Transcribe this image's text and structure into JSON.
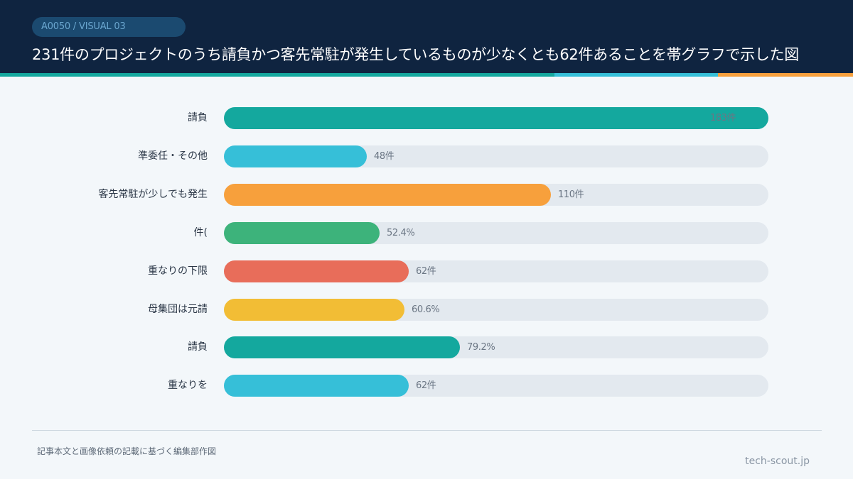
{
  "header": {
    "badge": "A0050 / VISUAL 03",
    "title": "231件のプロジェクトのうち請負かつ客先常駐が発生しているものが少なくとも62件あることを帯グラフで示した図"
  },
  "chart_data": {
    "type": "bar",
    "orientation": "horizontal",
    "xlim": [
      0,
      183
    ],
    "categories": [
      "請負",
      "準委任・その他",
      "客先常駐が少しでも発生",
      "件(",
      "重なりの下限",
      "母集団は元請",
      "請負",
      "重なりを"
    ],
    "values": [
      183,
      48,
      110,
      52.4,
      62,
      60.6,
      79.2,
      62
    ],
    "value_labels": [
      "183件",
      "48件",
      "110件",
      "52.4%",
      "62件",
      "60.6%",
      "79.2%",
      "62件"
    ],
    "colors": [
      "#14a89e",
      "#36bfd8",
      "#f7a03c",
      "#3db37b",
      "#e86d5a",
      "#f2bd35",
      "#14a89e",
      "#36bfd8"
    ],
    "grid": false,
    "legend": "none"
  },
  "footer": {
    "source": "記事本文と画像依頼の記載に基づく編集部作図",
    "site": "tech-scout.jp"
  }
}
